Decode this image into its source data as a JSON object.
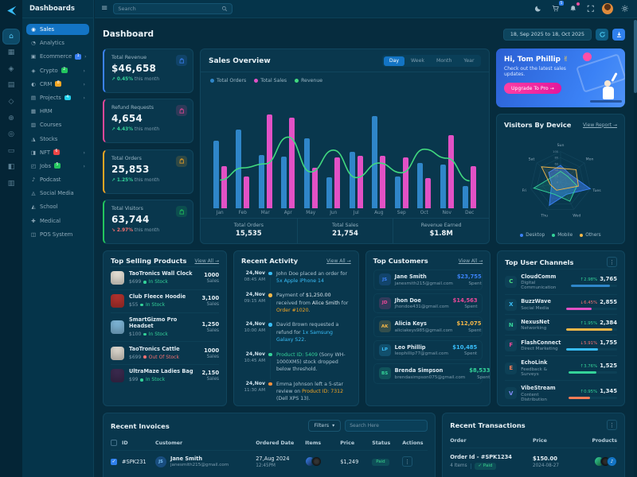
{
  "ui": {
    "kebab": "⋮",
    "hamburger": "≡",
    "caret": "▾",
    "check": "✓"
  },
  "brand": {
    "name": "Dashboards"
  },
  "rail": {
    "icons": [
      {
        "name": "home-icon",
        "glyph": "⌂",
        "active": true
      },
      {
        "name": "apps-grid-icon",
        "glyph": "▦"
      },
      {
        "name": "layers-icon",
        "glyph": "◈"
      },
      {
        "name": "document-icon",
        "glyph": "▤"
      },
      {
        "name": "diamond-icon",
        "glyph": "◇"
      },
      {
        "name": "globe-icon",
        "glyph": "⊕"
      },
      {
        "name": "compass-icon",
        "glyph": "◎"
      },
      {
        "name": "wallet-icon",
        "glyph": "▭"
      },
      {
        "name": "chart-icon",
        "glyph": "◧"
      },
      {
        "name": "board-icon",
        "glyph": "▥"
      }
    ]
  },
  "sidebar": {
    "items": [
      {
        "label": "Sales",
        "icon": "◉",
        "active": true
      },
      {
        "label": "Analytics",
        "icon": "◔"
      },
      {
        "label": "Ecommerce",
        "icon": "▣",
        "badge": "1",
        "badge_color": "#3b82f6",
        "arrow": "›"
      },
      {
        "label": "Crypto",
        "icon": "◈",
        "badge": "2",
        "badge_color": "#22c55e",
        "arrow": "›"
      },
      {
        "label": "CRM",
        "icon": "◐",
        "badge": "8",
        "badge_color": "#f5a623",
        "arrow": "›"
      },
      {
        "label": "Projects",
        "icon": "▤",
        "badge": "4",
        "badge_color": "#22d3ee",
        "arrow": "›"
      },
      {
        "label": "HRM",
        "icon": "▦"
      },
      {
        "label": "Courses",
        "icon": "▥"
      },
      {
        "label": "Stocks",
        "icon": "◮"
      },
      {
        "label": "NFT",
        "icon": "◨",
        "badge": "6",
        "badge_color": "#ef4444",
        "arrow": "›"
      },
      {
        "label": "Jobs",
        "icon": "◰",
        "badge": "5",
        "badge_color": "#22c55e",
        "arrow": "›"
      },
      {
        "label": "Podcast",
        "icon": "♪"
      },
      {
        "label": "Social Media",
        "icon": "◬"
      },
      {
        "label": "School",
        "icon": "◭"
      },
      {
        "label": "Medical",
        "icon": "✚"
      },
      {
        "label": "POS System",
        "icon": "◫"
      }
    ]
  },
  "header": {
    "search_placeholder": "Search",
    "cart_badge": "5"
  },
  "page": {
    "title": "Dashboard",
    "date_range": "18, Sep 2025 to 18, Oct 2025"
  },
  "stats": [
    {
      "title": "Total Revenue",
      "value": "$46,658",
      "arrow": "↗",
      "change": "0.45%",
      "note": "this month",
      "change_color": "#34d399",
      "accent": "#3b82f6",
      "tile_bg": "rgba(59,130,246,0.16)",
      "icon": "bag"
    },
    {
      "title": "Refund Requests",
      "value": "4,654",
      "arrow": "↗",
      "change": "4.43%",
      "note": "this month",
      "change_color": "#34d399",
      "accent": "#ec4899",
      "tile_bg": "rgba(236,72,153,0.16)",
      "icon": "box"
    },
    {
      "title": "Total Orders",
      "value": "25,853",
      "arrow": "↗",
      "change": "1.25%",
      "note": "this month",
      "change_color": "#34d399",
      "accent": "#f5a623",
      "tile_bg": "rgba(245,166,35,0.16)",
      "icon": "cart"
    },
    {
      "title": "Total Visitors",
      "value": "63,744",
      "arrow": "↘",
      "change": "2.97%",
      "note": "this month",
      "change_color": "#f87171",
      "accent": "#22c55e",
      "tile_bg": "rgba(34,197,94,0.16)",
      "icon": "users"
    }
  ],
  "sales_overview": {
    "title": "Sales Overview",
    "tabs": [
      {
        "label": "Day",
        "active": true
      },
      {
        "label": "Week"
      },
      {
        "label": "Month"
      },
      {
        "label": "Year"
      }
    ],
    "footer": [
      {
        "label": "Total Orders",
        "value": "15,535"
      },
      {
        "label": "Total Sales",
        "value": "21,754"
      },
      {
        "label": "Revenue Earned",
        "value": "$1.8M"
      }
    ]
  },
  "banner": {
    "greeting": "Hi, Tom Phillip",
    "wave": "✌",
    "subtitle": "Check out the latest sales updates.",
    "cta": "Upgrade To Pro →"
  },
  "visitors": {
    "title": "Visitors By Device",
    "link": "View Report →"
  },
  "products": {
    "title": "Top Selling Products",
    "link": "View All →",
    "unit_label": "Sales",
    "rows": [
      {
        "name": "TaoTronics Wall Clock",
        "price": "$699",
        "stock": "In Stock",
        "stock_color": "#34d399",
        "sales": "1000",
        "thumb": "#e8e3d8"
      },
      {
        "name": "Club Fleece Hoodie",
        "price": "$55",
        "stock": "In Stock",
        "stock_color": "#34d399",
        "sales": "3,100",
        "thumb": "#b3322e"
      },
      {
        "name": "SmartGizmo Pro Headset",
        "price": "$100",
        "stock": "In Stock",
        "stock_color": "#34d399",
        "sales": "1,250",
        "thumb": "#7fb7d9"
      },
      {
        "name": "TaoTronics Cattle",
        "price": "$699",
        "stock": "Out Of Stock",
        "stock_color": "#f87171",
        "sales": "1000",
        "thumb": "#ded9cf"
      },
      {
        "name": "UltraMaze Ladies Bag",
        "price": "$99",
        "stock": "In Stock",
        "stock_color": "#34d399",
        "sales": "2,150",
        "thumb": "#3b2a4f"
      }
    ]
  },
  "activity": {
    "title": "Recent Activity",
    "link": "View All →",
    "items": [
      {
        "date": "24,Nov",
        "time": "08:45 AM",
        "dot": "#38bdf8",
        "segments": [
          {
            "t": "John Doe placed an order for "
          },
          {
            "t": "5x Apple iPhone 14",
            "c": "#38bdf8"
          }
        ]
      },
      {
        "date": "24,Nov",
        "time": "09:15 AM",
        "dot": "#f5b849",
        "segments": [
          {
            "t": "Payment of "
          },
          {
            "t": "$1,250.00",
            "c": "#dfe9ef"
          },
          {
            "t": " received from "
          },
          {
            "t": "Alice Smith",
            "c": "#dfe9ef"
          },
          {
            "t": " for "
          },
          {
            "t": "Order #1020",
            "c": "#f5a623"
          },
          {
            "t": "."
          }
        ]
      },
      {
        "date": "24,Nov",
        "time": "10:00 AM",
        "dot": "#38bdf8",
        "segments": [
          {
            "t": "David Brown requested a refund for "
          },
          {
            "t": "1x Samsung Galaxy S22",
            "c": "#38bdf8"
          },
          {
            "t": "."
          }
        ]
      },
      {
        "date": "24,Nov",
        "time": "10:45 AM",
        "dot": "#34d399",
        "segments": [
          {
            "t": "Product ID: 5409",
            "c": "#34d399"
          },
          {
            "t": " (Sony WH-1000XM5) stock dropped below threshold."
          }
        ]
      },
      {
        "date": "24,Nov",
        "time": "11:30 AM",
        "dot": "#fb923c",
        "segments": [
          {
            "t": "Emma Johnson left a 5-star review on "
          },
          {
            "t": "Product ID: 7312",
            "c": "#f5a623"
          },
          {
            "t": " (Dell XPS 13)."
          }
        ]
      }
    ]
  },
  "customers": {
    "title": "Top Customers",
    "link": "View All →",
    "spent_label": "Spent",
    "rows": [
      {
        "initials": "JS",
        "name": "Jane Smith",
        "email": "janesmith215@gmail.com",
        "amount": "$23,755",
        "color": "#3b82f6",
        "av_bg": "rgba(59,130,246,0.18)"
      },
      {
        "initials": "JD",
        "name": "Jhon Doe",
        "email": "jhondoe431@gmail.com",
        "amount": "$14,563",
        "color": "#ec4899",
        "av_bg": "rgba(236,72,153,0.18)"
      },
      {
        "initials": "AK",
        "name": "Alicia Keys",
        "email": "aliciakeys985@gmail.com",
        "amount": "$12,075",
        "color": "#f5b849",
        "av_bg": "rgba(245,184,73,0.18)"
      },
      {
        "initials": "LP",
        "name": "Leo Phillip",
        "email": "leophillip77@gmail.com",
        "amount": "$10,485",
        "color": "#38bdf8",
        "av_bg": "rgba(56,189,248,0.18)"
      },
      {
        "initials": "BS",
        "name": "Brenda Simpson",
        "email": "brendasimpson075@gmail.com",
        "amount": "$8,533",
        "color": "#34d399",
        "av_bg": "rgba(52,211,153,0.18)"
      }
    ]
  },
  "channels": {
    "title": "Top User Channels",
    "rows": [
      {
        "initial": "C",
        "icon_color": "#4ade80",
        "name": "CloudComm",
        "category": "Digital Communication",
        "arrow": "↑",
        "change": "2.98%",
        "change_color": "#34d399",
        "value": "3,765",
        "bar_color": "#2f86c9",
        "pct": 85
      },
      {
        "initial": "X",
        "icon_color": "#38bdf8",
        "name": "BuzzWave",
        "category": "Social Media",
        "arrow": "↓",
        "change": "6.45%",
        "change_color": "#f87171",
        "value": "2,855",
        "bar_color": "#e251c5",
        "pct": 50
      },
      {
        "initial": "N",
        "icon_color": "#34d399",
        "name": "NexusNet",
        "category": "Networking",
        "arrow": "↑",
        "change": "1.95%",
        "change_color": "#34d399",
        "value": "2,384",
        "bar_color": "#f5b849",
        "pct": 90
      },
      {
        "initial": "F",
        "icon_color": "#ec4899",
        "name": "FlashConnect",
        "category": "Direct Marketing",
        "arrow": "↓",
        "change": "5.91%",
        "change_color": "#f87171",
        "value": "1,755",
        "bar_color": "#38bdf8",
        "pct": 62
      },
      {
        "initial": "E",
        "icon_color": "#fb7d56",
        "name": "EchoLink",
        "category": "Feedback & Surveys",
        "arrow": "↑",
        "change": "3.76%",
        "change_color": "#34d399",
        "value": "1,525",
        "bar_color": "#34d399",
        "pct": 58
      },
      {
        "initial": "V",
        "icon_color": "#818cf8",
        "name": "VibeStream",
        "category": "Content Distribution",
        "arrow": "↑",
        "change": "0.95%",
        "change_color": "#34d399",
        "value": "1,345",
        "bar_color": "#fb7d56",
        "pct": 45
      }
    ]
  },
  "invoices": {
    "title": "Recent Invoices",
    "filters_label": "Filters",
    "search_placeholder": "Search Here",
    "columns": {
      "id": "ID",
      "customer": "Customer",
      "date": "Ordered Date",
      "items": "Items",
      "price": "Price",
      "status": "Status",
      "actions": "Actions"
    },
    "rows": [
      {
        "id": "#SPK231",
        "initials": "JS",
        "name": "Jane Smith",
        "email": "janesmith215@gmail.com",
        "date": "27,Aug 2024",
        "time": "12:45PM",
        "price": "$1,249",
        "status": "Paid"
      }
    ]
  },
  "transactions": {
    "title": "Recent Transactions",
    "columns": {
      "order": "Order",
      "price": "Price",
      "products": "Products"
    },
    "rows": [
      {
        "order": "Order Id - #SPK1234",
        "items": "4 Items",
        "status": "✓ Paid",
        "price": "$150.00",
        "date": "2024-08-27"
      }
    ]
  },
  "chart_data": [
    {
      "type": "bar",
      "title": "Sales Overview",
      "categories": [
        "Jan",
        "Feb",
        "Mar",
        "Apr",
        "May",
        "Jun",
        "Jul",
        "Aug",
        "Sep",
        "Oct",
        "Nov",
        "Dec"
      ],
      "series": [
        {
          "name": "Total Orders",
          "color": "#2f86c9",
          "values": [
            72,
            84,
            57,
            55,
            75,
            33,
            60,
            98,
            34,
            48,
            47,
            24
          ]
        },
        {
          "name": "Total Sales",
          "color": "#e251c5",
          "values": [
            45,
            34,
            100,
            97,
            43,
            54,
            56,
            56,
            54,
            32,
            78,
            45
          ]
        },
        {
          "name": "Revenue",
          "type": "line",
          "color": "#41d97f",
          "values": [
            25,
            40,
            45,
            78,
            35,
            62,
            28,
            46,
            34,
            63,
            52,
            24
          ]
        }
      ],
      "ylim": [
        0,
        100
      ],
      "legend_position": "top",
      "totals": {
        "total_orders": "15,535",
        "total_sales": "21,754",
        "revenue_earned": "$1.8M"
      }
    },
    {
      "type": "radar",
      "title": "Visitors By Device",
      "categories": [
        "Sun",
        "Mon",
        "Tues",
        "Wed",
        "Thu",
        "Fri",
        "Sat"
      ],
      "ticks": [
        0,
        20,
        40,
        60,
        80,
        100
      ],
      "series": [
        {
          "name": "Desktop",
          "color": "#3b82f6",
          "fill": "rgba(59,130,246,0.5)",
          "values": [
            55,
            40,
            100,
            45,
            85,
            30,
            50
          ]
        },
        {
          "name": "Mobile",
          "color": "#34d399",
          "fill": "rgba(52,211,153,0.14)",
          "values": [
            35,
            30,
            55,
            70,
            45,
            90,
            30
          ]
        },
        {
          "name": "Others",
          "color": "#f5b849",
          "fill": "rgba(245,184,73,0.08)",
          "values": [
            45,
            65,
            60,
            25,
            30,
            35,
            80
          ]
        }
      ],
      "legend_position": "bottom"
    }
  ]
}
